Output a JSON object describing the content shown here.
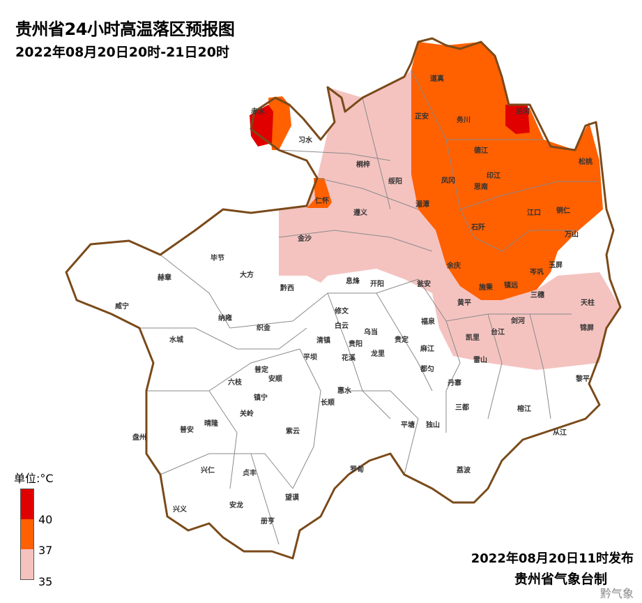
{
  "header": {
    "title": "贵州省24小时高温落区预报图",
    "subtitle": "2022年08月20日20时-21日20时"
  },
  "legend": {
    "unit": "单位:°C",
    "ticks": [
      "40",
      "37",
      "35"
    ],
    "bins": [
      {
        "range": ">40",
        "color": "#e00000"
      },
      {
        "range": "37-40",
        "color": "#ff6000"
      },
      {
        "range": "35-37",
        "color": "#f4c3c0"
      }
    ]
  },
  "colors": {
    "border": "#7a4a1a",
    "county_line": "#888888",
    "no_warning": "#ffffff"
  },
  "counties": [
    "赤水",
    "习水",
    "道真",
    "正安",
    "务川",
    "沿河",
    "德江",
    "松桃",
    "桐梓",
    "绥阳",
    "凤冈",
    "印江",
    "思南",
    "仁怀",
    "湄潭",
    "遵义",
    "江口",
    "铜仁",
    "石阡",
    "万山",
    "金沙",
    "余庆",
    "玉屏",
    "岑巩",
    "毕节",
    "大方",
    "赫章",
    "黔西",
    "息烽",
    "开阳",
    "瓮安",
    "施秉",
    "镇远",
    "三穗",
    "黄平",
    "天柱",
    "威宁",
    "修文",
    "福泉",
    "纳雍",
    "织金",
    "白云",
    "乌当",
    "贵阳",
    "清镇",
    "剑河",
    "台江",
    "锦屏",
    "贵定",
    "凯里",
    "水城",
    "麻江",
    "龙里",
    "平坝",
    "花溪",
    "雷山",
    "普定",
    "都匀",
    "安顺",
    "黎平",
    "六枝",
    "丹寨",
    "惠水",
    "镇宁",
    "长顺",
    "关岭",
    "三都",
    "榕江",
    "晴隆",
    "普安",
    "紫云",
    "盘州",
    "平塘",
    "独山",
    "从江",
    "兴仁",
    "贞丰",
    "罗甸",
    "荔波",
    "望谟",
    "兴义",
    "安龙",
    "册亨"
  ],
  "footer": {
    "issued": "2022年08月20日11时发布",
    "agency": "贵州省气象台制",
    "watermark": "黔气象"
  }
}
